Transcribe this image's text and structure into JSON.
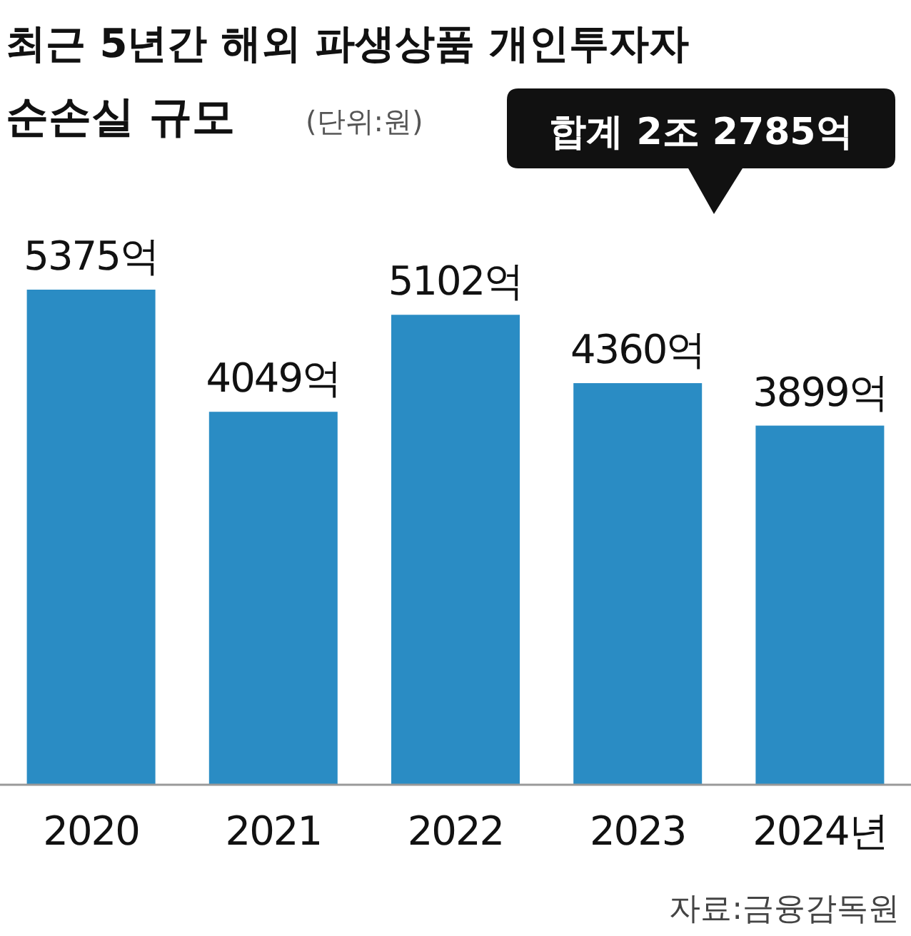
{
  "chart_data": {
    "type": "bar",
    "title": "최근 5년간 해외 파생상품 개인투자자 순손실 규모",
    "subtitle": "(단위:원)",
    "categories": [
      "2020",
      "2021",
      "2022",
      "2023",
      "2024년"
    ],
    "values": [
      5375,
      4049,
      5102,
      4360,
      3899
    ],
    "value_labels": [
      "5375억",
      "4049억",
      "5102억",
      "4360억",
      "3899억"
    ],
    "color": "#2a8cc4",
    "annotations": [
      "합계 2조 2785억",
      "자료:금융감독원"
    ]
  }
}
